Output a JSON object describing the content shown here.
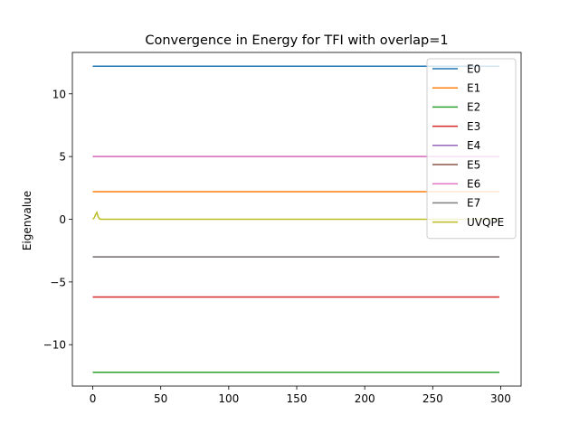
{
  "chart_data": {
    "type": "line",
    "title": "Convergence in Energy for TFI with overlap=1",
    "xlabel": "",
    "ylabel": "Eigenvalue",
    "xlim": [
      -15,
      315
    ],
    "ylim": [
      -13.3,
      13.3
    ],
    "xticks": [
      0,
      50,
      100,
      150,
      200,
      250,
      300
    ],
    "xtick_labels": [
      "0",
      "50",
      "100",
      "150",
      "200",
      "250",
      "300"
    ],
    "yticks": [
      -10,
      -5,
      0,
      5,
      10
    ],
    "ytick_labels": [
      "−10",
      "−5",
      "0",
      "5",
      "10"
    ],
    "grid": false,
    "legend_position": "top-right",
    "x_range": [
      0,
      299
    ],
    "series": [
      {
        "name": "E0",
        "color": "#1f77b4",
        "x": [
          0,
          299
        ],
        "values": [
          12.2,
          12.2
        ]
      },
      {
        "name": "E1",
        "color": "#ff7f0e",
        "x": [
          0,
          299
        ],
        "values": [
          2.2,
          2.2
        ]
      },
      {
        "name": "E2",
        "color": "#2ca02c",
        "x": [
          0,
          299
        ],
        "values": [
          -12.2,
          -12.2
        ]
      },
      {
        "name": "E3",
        "color": "#d62728",
        "x": [
          0,
          299
        ],
        "values": [
          -6.2,
          -6.2
        ]
      },
      {
        "name": "E4",
        "color": "#9467bd",
        "x": [
          0,
          299
        ],
        "values": [
          5.0,
          5.0
        ]
      },
      {
        "name": "E5",
        "color": "#8c564b",
        "x": [
          0,
          299
        ],
        "values": [
          -3.0,
          -3.0
        ]
      },
      {
        "name": "E6",
        "color": "#e377c2",
        "x": [
          0,
          299
        ],
        "values": [
          5.0,
          5.0
        ]
      },
      {
        "name": "E7",
        "color": "#7f7f7f",
        "x": [
          0,
          299
        ],
        "values": [
          -3.0,
          -3.0
        ]
      },
      {
        "name": "UVQPE",
        "color": "#bcbd22",
        "x": [
          0,
          1,
          2,
          3,
          4,
          5,
          6,
          299
        ],
        "values": [
          0.0,
          0.1,
          0.35,
          0.55,
          0.2,
          0.03,
          0.0,
          0.0
        ]
      }
    ]
  }
}
